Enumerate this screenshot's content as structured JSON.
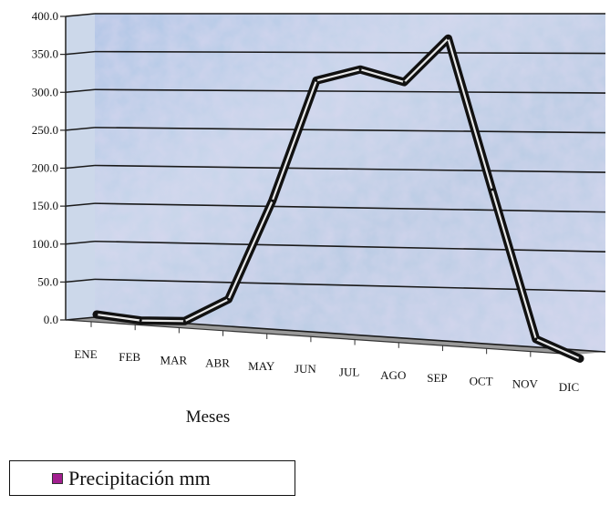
{
  "chart_data": {
    "type": "line",
    "categories": [
      "ENE",
      "FEB",
      "MAR",
      "ABR",
      "MAY",
      "JUN",
      "JUL",
      "AGO",
      "SEP",
      "OCT",
      "NOV",
      "DIC"
    ],
    "series": [
      {
        "name": "Precipitación mm",
        "values": [
          4,
          0,
          3,
          35,
          165,
          320,
          335,
          320,
          375,
          190,
          10,
          -10
        ]
      }
    ],
    "y_ticks": [
      "0.0",
      "50.0",
      "100.0",
      "150.0",
      "200.0",
      "250.0",
      "300.0",
      "350.0",
      "400.0"
    ],
    "ylim": [
      0,
      400
    ],
    "xlabel": "Meses",
    "ylabel": "",
    "grid": true,
    "legend_position": "bottom-left",
    "colors": {
      "line": "#111111",
      "legend_swatch": "#a21f8f",
      "wall": "#b9cde3"
    }
  }
}
